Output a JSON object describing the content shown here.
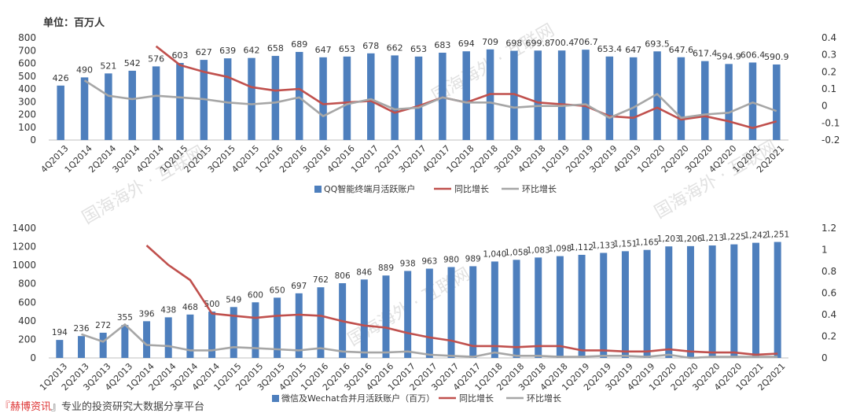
{
  "watermark": "国海海外 · 互联网",
  "footer_note": {
    "highlight": "赫博资讯",
    "rest": "专业的投资研究大数据分享平台"
  },
  "colors": {
    "bar": "#4e7fbd",
    "yoy": "#c0504d",
    "qoq": "#a6a6a6",
    "axis": "#333333",
    "label": "#333333"
  },
  "chart_data": [
    {
      "type": "bar",
      "unit_note": "单位：百万人",
      "categories": [
        "4Q2013",
        "1Q2014",
        "2Q2014",
        "3Q2014",
        "4Q2014",
        "1Q2015",
        "2Q2015",
        "3Q2015",
        "4Q2015",
        "1Q2016",
        "2Q2016",
        "3Q2016",
        "4Q2016",
        "1Q2017",
        "2Q2017",
        "3Q2017",
        "4Q2017",
        "1Q2018",
        "2Q2018",
        "3Q2018",
        "4Q2018",
        "1Q2019",
        "2Q2019",
        "3Q2019",
        "4Q2019",
        "1Q2020",
        "2Q2020",
        "3Q2020",
        "4Q2020",
        "1Q2021",
        "2Q2021"
      ],
      "series": [
        {
          "name": "QQ智能终端月活跃账户",
          "type": "bar",
          "axis": "left",
          "values": [
            426,
            490,
            521,
            542,
            576,
            603,
            627,
            639,
            642,
            658,
            689,
            647,
            653,
            678,
            662,
            653,
            683,
            694,
            709,
            698,
            699.8,
            700.4,
            706.7,
            653.4,
            647,
            693.5,
            647.6,
            617.4,
            594.9,
            606.4,
            590.9
          ],
          "labels": [
            "426",
            "490",
            "521",
            "542",
            "576",
            "603",
            "627",
            "639",
            "642",
            "658",
            "689",
            "647",
            "653",
            "678",
            "662",
            "653",
            "683",
            "694",
            "709",
            "698",
            "699.8",
            "700.4",
            "706.7",
            "653.4",
            "647",
            "693.5",
            "647.6",
            "617.4",
            "594.9",
            "606.4",
            "590.9"
          ]
        },
        {
          "name": "同比增长",
          "type": "line",
          "axis": "right",
          "values": [
            null,
            null,
            null,
            null,
            0.35,
            0.24,
            0.2,
            0.17,
            0.11,
            0.09,
            0.1,
            0.01,
            0.02,
            0.03,
            -0.04,
            0,
            0.05,
            0.02,
            0.07,
            0.07,
            0.02,
            0.01,
            0,
            -0.06,
            -0.07,
            -0.01,
            -0.08,
            -0.06,
            -0.09,
            -0.13,
            -0.09
          ]
        },
        {
          "name": "环比增长",
          "type": "line",
          "axis": "right",
          "values": [
            null,
            0.15,
            0.06,
            0.04,
            0.06,
            0.05,
            0.04,
            0.02,
            0.01,
            0.02,
            0.05,
            -0.06,
            0.01,
            0.04,
            -0.02,
            -0.01,
            0.05,
            0.02,
            0.02,
            -0.01,
            0,
            0,
            0.01,
            -0.07,
            -0.01,
            0.07,
            -0.07,
            -0.05,
            -0.04,
            0.02,
            -0.03
          ]
        }
      ],
      "left_axis": {
        "min": 0,
        "max": 800,
        "step": 100,
        "ticks": [
          "0",
          "100",
          "200",
          "300",
          "400",
          "500",
          "600",
          "700",
          "800"
        ]
      },
      "right_axis": {
        "min": -0.2,
        "max": 0.4,
        "step": 0.1,
        "ticks": [
          "-0.2",
          "-0.1",
          "0",
          "0.1",
          "0.2",
          "0.3",
          "0.4"
        ]
      },
      "legend": {
        "placement": "bottom-center",
        "items": [
          "QQ智能终端月活跃账户",
          "同比增长",
          "环比增长"
        ]
      }
    },
    {
      "type": "bar",
      "categories": [
        "1Q2013",
        "2Q2013",
        "3Q2013",
        "4Q2013",
        "1Q2014",
        "2Q2014",
        "3Q2014",
        "4Q2014",
        "1Q2015",
        "2Q2015",
        "3Q2015",
        "4Q2015",
        "1Q2016",
        "2Q2016",
        "3Q2016",
        "4Q2016",
        "1Q2017",
        "2Q2017",
        "3Q2017",
        "4Q2017",
        "1Q2018",
        "2Q2018",
        "3Q2018",
        "4Q2018",
        "1Q2019",
        "2Q2019",
        "3Q2019",
        "4Q2019",
        "1Q2020",
        "2Q2020",
        "3Q2020",
        "4Q2020",
        "1Q2021",
        "2Q2021"
      ],
      "series": [
        {
          "name": "微信及Wechat合并月活跃账户（百万）",
          "type": "bar",
          "axis": "left",
          "values": [
            194,
            236,
            272,
            355,
            396,
            438,
            468,
            500,
            549,
            600,
            650,
            697,
            762,
            806,
            846,
            889,
            938,
            963,
            980,
            989,
            1040,
            1058,
            1083,
            1098,
            1112,
            1133,
            1151,
            1165,
            1203,
            1206,
            1213,
            1225,
            1242,
            1251
          ],
          "labels": [
            "194",
            "236",
            "272",
            "355",
            "396",
            "438",
            "468",
            "500",
            "549",
            "600",
            "650",
            "697",
            "762",
            "806",
            "846",
            "889",
            "938",
            "963",
            "980",
            "989",
            "1,040",
            "1,058",
            "1,083",
            "1,098",
            "1,112",
            "1,133",
            "1,151",
            "1,165",
            "1,203",
            "1,206",
            "1,213",
            "1,225",
            "1,242",
            "1,251"
          ]
        },
        {
          "name": "同比增长",
          "type": "line",
          "axis": "right",
          "values": [
            null,
            null,
            null,
            null,
            1.04,
            0.86,
            0.72,
            0.41,
            0.39,
            0.37,
            0.39,
            0.4,
            0.39,
            0.34,
            0.3,
            0.28,
            0.23,
            0.19,
            0.16,
            0.11,
            0.11,
            0.1,
            0.11,
            0.11,
            0.07,
            0.07,
            0.06,
            0.06,
            0.08,
            0.06,
            0.05,
            0.05,
            0.03,
            0.04
          ]
        },
        {
          "name": "环比增长",
          "type": "line",
          "axis": "right",
          "values": [
            null,
            0.22,
            0.15,
            0.31,
            0.12,
            0.11,
            0.07,
            0.07,
            0.1,
            0.09,
            0.08,
            0.07,
            0.09,
            0.06,
            0.05,
            0.05,
            0.06,
            0.03,
            0.02,
            0.01,
            0.05,
            0.02,
            0.02,
            0.01,
            0.01,
            0.02,
            0.02,
            0.01,
            0.03,
            0,
            0.01,
            0.01,
            0.01,
            0.01
          ]
        }
      ],
      "left_axis": {
        "min": 0,
        "max": 1400,
        "step": 200,
        "ticks": [
          "0",
          "200",
          "400",
          "600",
          "800",
          "1000",
          "1200",
          "1400"
        ]
      },
      "right_axis": {
        "min": 0,
        "max": 1.2,
        "step": 0.2,
        "ticks": [
          "0",
          "0.2",
          "0.4",
          "0.6",
          "0.8",
          "1",
          "1.2"
        ]
      },
      "legend": {
        "placement": "bottom-center",
        "items": [
          "微信及Wechat合并月活跃账户（百万）",
          "同比增长",
          "环比增长"
        ]
      }
    }
  ]
}
